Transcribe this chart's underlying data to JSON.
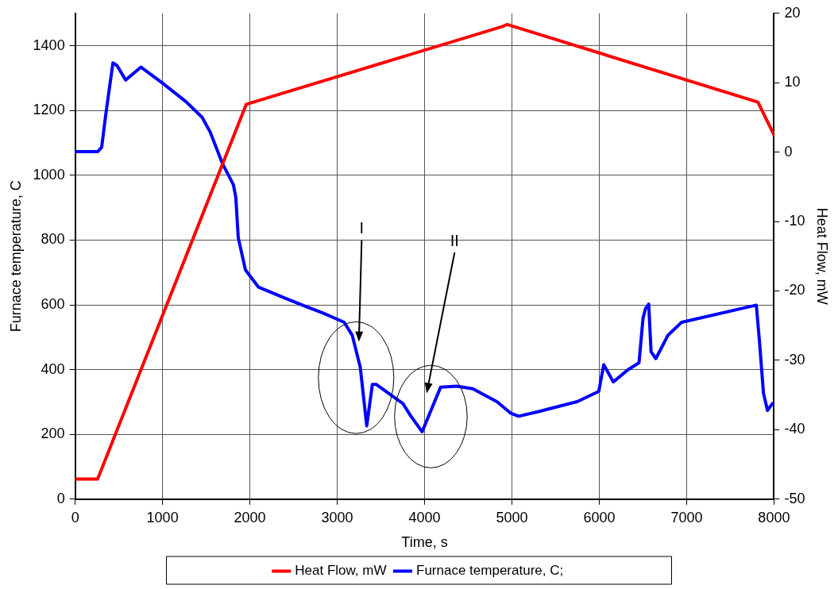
{
  "chart_data": {
    "type": "line",
    "xlabel": "Time, s",
    "ylabel": "Furnace temperature, C",
    "y2label": "Heat Flow, mW",
    "xlim": [
      0,
      8000
    ],
    "xticks": [
      0,
      1000,
      2000,
      3000,
      4000,
      5000,
      6000,
      7000,
      8000
    ],
    "ylim": [
      0,
      1500
    ],
    "yticks": [
      0,
      200,
      400,
      600,
      800,
      1000,
      1200,
      1400
    ],
    "y2lim": [
      -50,
      20
    ],
    "y2ticks": [
      -50,
      -40,
      -30,
      -20,
      -10,
      0,
      10,
      20
    ],
    "grid": true,
    "legend": "bottom",
    "marker": "none",
    "line_style": "solid",
    "series": [
      {
        "name": "Heat Flow, mW",
        "color": "#ff0000",
        "axis": "y2",
        "x": [
          0,
          257,
          1959,
          4892,
          4947,
          7816,
          8000
        ],
        "values": [
          -47.1,
          -47.1,
          6.9,
          18.1,
          18.4,
          7.2,
          2.5
        ]
      },
      {
        "name": "Furnace temperature, C;",
        "color": "#0000ff",
        "x": [
          0,
          257,
          303,
          350,
          432,
          478,
          579,
          754,
          993,
          1269,
          1453,
          1545,
          1683,
          1811,
          1839,
          1867,
          1949,
          2097,
          2409,
          2648,
          2832,
          3080,
          3172,
          3264,
          3338,
          3402,
          3448,
          3752,
          3844,
          3972,
          4046,
          4184,
          4368,
          4552,
          4828,
          4984,
          5076,
          5287,
          5471,
          5747,
          5995,
          6051,
          6161,
          6326,
          6455,
          6501,
          6529,
          6566,
          6593,
          6648,
          6786,
          6943,
          7798,
          7834,
          7880,
          7926,
          7982
        ],
        "values": [
          1073,
          1073,
          1086,
          1187,
          1347,
          1339,
          1294,
          1334,
          1286,
          1227,
          1179,
          1134,
          1038,
          971,
          932,
          807,
          708,
          655,
          620,
          594,
          575,
          546,
          506,
          407,
          226,
          354,
          354,
          295,
          256,
          208,
          256,
          346,
          349,
          341,
          301,
          266,
          256,
          269,
          282,
          301,
          333,
          415,
          362,
          399,
          421,
          559,
          588,
          602,
          455,
          434,
          506,
          546,
          599,
          487,
          327,
          274,
          295
        ]
      }
    ],
    "annotations": [
      "I",
      "II"
    ]
  }
}
